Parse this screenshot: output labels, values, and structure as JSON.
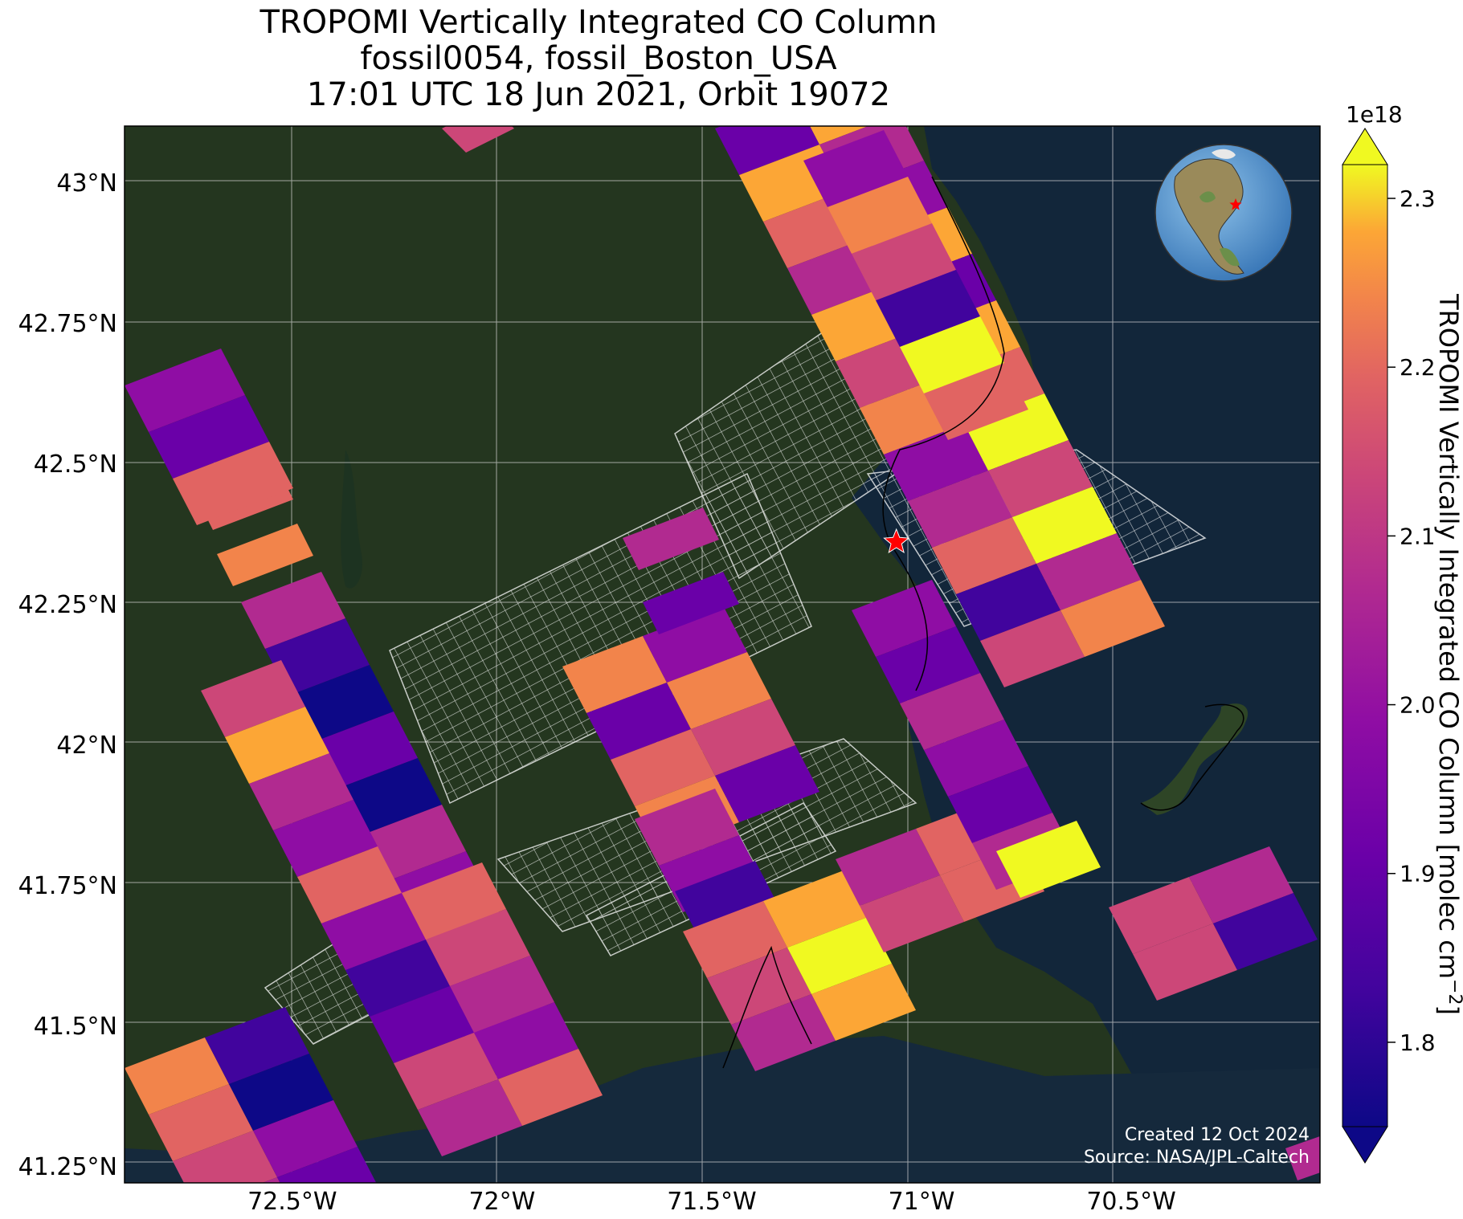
{
  "title": {
    "line1": "TROPOMI Vertically Integrated CO Column",
    "line2": "fossil0054, fossil_Boston_USA",
    "line3": "17:01 UTC 18 Jun 2021, Orbit 19072"
  },
  "map": {
    "lon_range": [
      -72.9,
      -70.05
    ],
    "lat_range": [
      41.22,
      43.1
    ],
    "lon_ticks": [
      -72.5,
      -72.0,
      -71.5,
      -71.0,
      -70.5
    ],
    "lon_tick_labels": [
      "72.5°W",
      "72°W",
      "71.5°W",
      "71°W",
      "70.5°W"
    ],
    "lat_ticks": [
      43.0,
      42.75,
      42.5,
      42.25,
      42.0,
      41.75,
      41.5,
      41.25
    ],
    "lat_tick_labels": [
      "43°N",
      "42.75°N",
      "42.5°N",
      "42.25°N",
      "42°N",
      "41.75°N",
      "41.5°N",
      "41.25°N"
    ],
    "gridlines": true,
    "basemap": "satellite imagery",
    "site_marker": {
      "name": "star-marker",
      "lon": -71.06,
      "lat": 42.36,
      "color": "#ff0000"
    },
    "inset_globe": {
      "position": "top-right",
      "icon": "globe-icon"
    },
    "credit_line1": "Created 12 Oct 2024",
    "credit_line2": "Source: NASA/JPL-Caltech"
  },
  "colorbar": {
    "label": "TROPOMI Vertically Integrated CO Column [molec cm",
    "label_sup": "−2",
    "label_end": "]",
    "exponent": "1e18",
    "vmin": 1.75,
    "vmax": 2.32,
    "ticks": [
      1.8,
      1.9,
      2.0,
      2.1,
      2.2,
      2.3
    ],
    "tick_labels": [
      "1.8",
      "1.9",
      "2.0",
      "2.1",
      "2.2",
      "2.3"
    ],
    "colormap": "plasma",
    "extend": "both"
  }
}
